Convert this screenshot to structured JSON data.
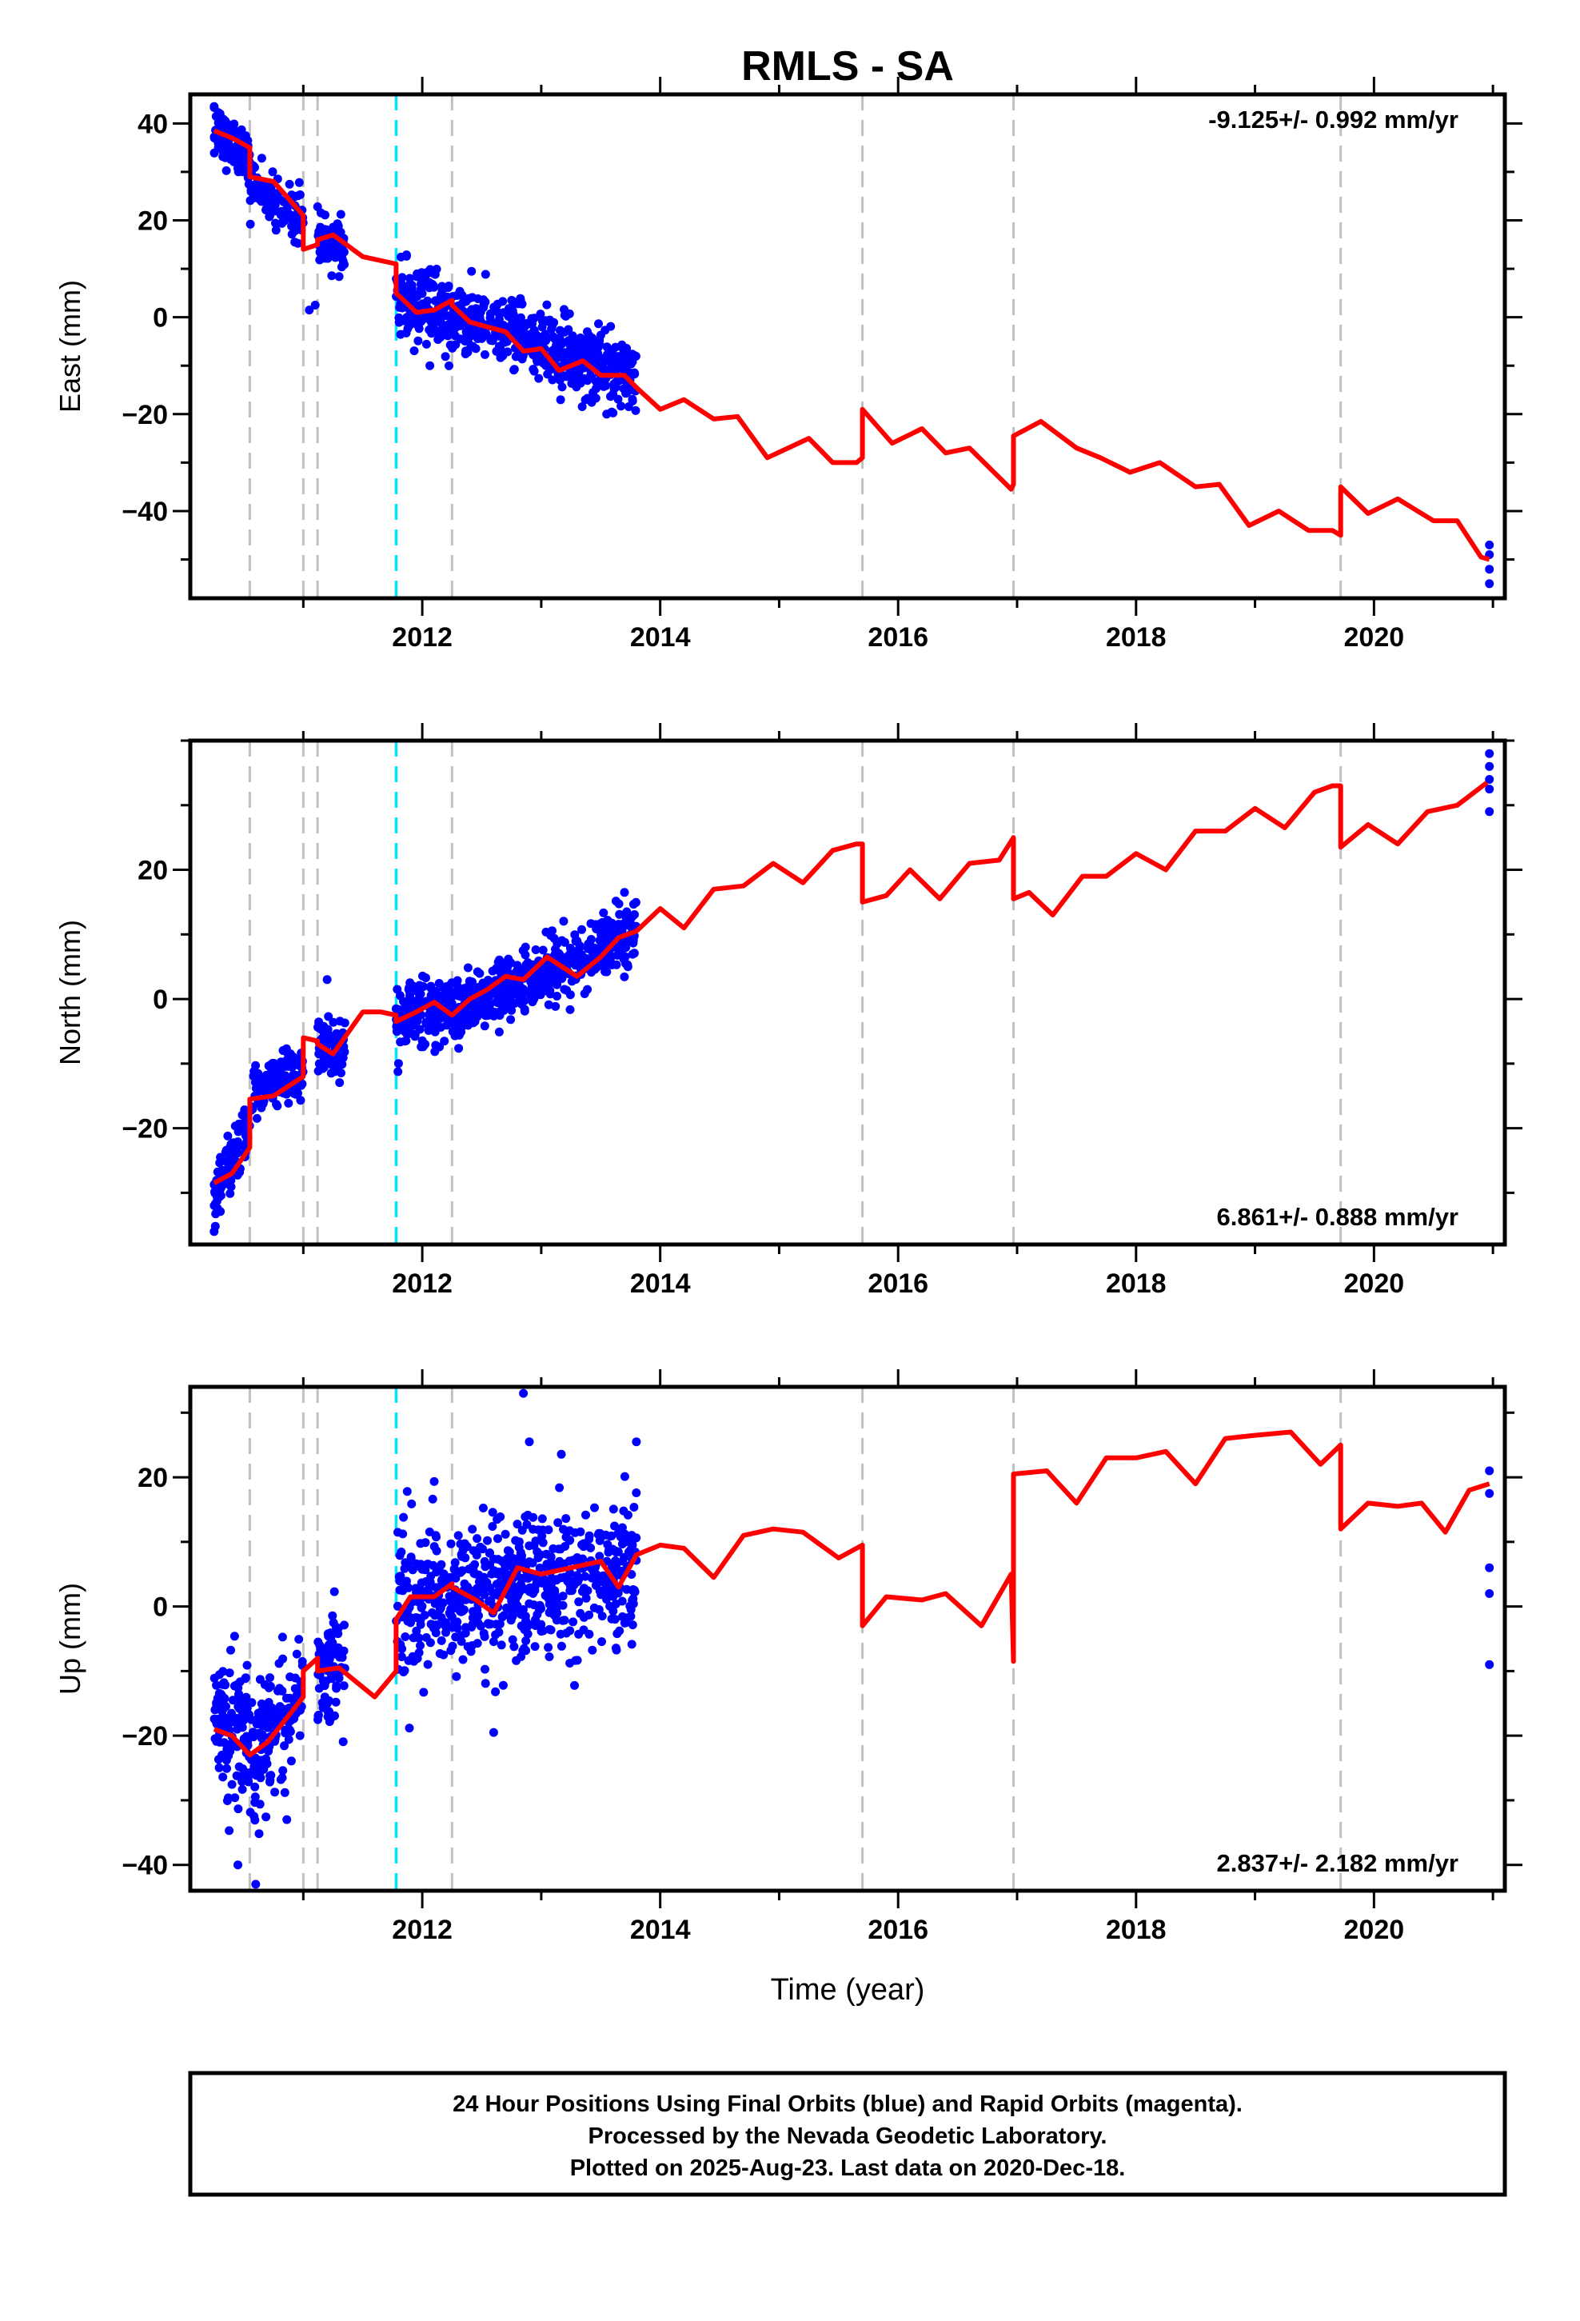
{
  "figure": {
    "title": "RMLS - SA",
    "xlabel": "Time (year)",
    "footer_lines": [
      "24 Hour Positions Using Final Orbits (blue) and Rapid Orbits (magenta).",
      "Processed by the Nevada Geodetic Laboratory.",
      "Plotted on 2025-Aug-23. Last data on 2020-Dec-18."
    ],
    "colors": {
      "data": "#0000ff",
      "model": "#ff0000",
      "event_gray": "#c0c0c0",
      "event_cyan": "#00e5ff"
    }
  },
  "chart_data": [
    {
      "type": "scatter",
      "component": "east",
      "ylabel": "East (mm)",
      "rate_label": "-9.125+/- 0.992 mm/yr",
      "rate_position": "top-right",
      "xlim": [
        2010.05,
        2021.1
      ],
      "ylim": [
        -58,
        46
      ],
      "xticks": [
        2012,
        2014,
        2016,
        2018,
        2020
      ],
      "yticks": [
        -40,
        -20,
        0,
        20,
        40
      ],
      "gray_events": [
        2010.55,
        2011.0,
        2011.12,
        2012.25,
        2015.7,
        2016.97,
        2019.72
      ],
      "cyan_events": [
        2011.78
      ],
      "model": [
        [
          2010.25,
          38.5
        ],
        [
          2010.4,
          37
        ],
        [
          2010.55,
          35
        ],
        [
          2010.55,
          29
        ],
        [
          2010.75,
          28
        ],
        [
          2011.0,
          21
        ],
        [
          2011.0,
          14
        ],
        [
          2011.12,
          15
        ],
        [
          2011.12,
          16
        ],
        [
          2011.25,
          17
        ],
        [
          2011.5,
          12.5
        ],
        [
          2011.78,
          11
        ],
        [
          2011.78,
          5
        ],
        [
          2011.95,
          1
        ],
        [
          2012.1,
          1.5
        ],
        [
          2012.25,
          3.5
        ],
        [
          2012.25,
          2.5
        ],
        [
          2012.4,
          -1
        ],
        [
          2012.55,
          -2
        ],
        [
          2012.7,
          -3
        ],
        [
          2012.85,
          -7
        ],
        [
          2013.0,
          -6.5
        ],
        [
          2013.15,
          -11
        ],
        [
          2013.35,
          -9
        ],
        [
          2013.5,
          -12
        ],
        [
          2013.7,
          -12
        ],
        [
          2013.8,
          -14.5
        ],
        [
          2014.0,
          -19
        ],
        [
          2014.2,
          -17
        ],
        [
          2014.45,
          -21
        ],
        [
          2014.65,
          -20.5
        ],
        [
          2014.9,
          -29
        ],
        [
          2015.25,
          -25
        ],
        [
          2015.45,
          -30
        ],
        [
          2015.65,
          -30
        ],
        [
          2015.7,
          -29
        ],
        [
          2015.7,
          -19
        ],
        [
          2015.95,
          -26
        ],
        [
          2016.2,
          -23
        ],
        [
          2016.4,
          -28
        ],
        [
          2016.6,
          -27
        ],
        [
          2016.95,
          -35.5
        ],
        [
          2016.97,
          -34.5
        ],
        [
          2016.97,
          -24.5
        ],
        [
          2017.2,
          -21.5
        ],
        [
          2017.5,
          -27
        ],
        [
          2017.7,
          -29
        ],
        [
          2017.95,
          -32
        ],
        [
          2018.2,
          -30
        ],
        [
          2018.5,
          -35
        ],
        [
          2018.7,
          -34.5
        ],
        [
          2018.95,
          -43
        ],
        [
          2019.2,
          -40
        ],
        [
          2019.45,
          -44
        ],
        [
          2019.65,
          -44
        ],
        [
          2019.72,
          -45
        ],
        [
          2019.72,
          -35
        ],
        [
          2019.95,
          -40.5
        ],
        [
          2020.2,
          -37.5
        ],
        [
          2020.5,
          -42
        ],
        [
          2020.7,
          -42
        ],
        [
          2020.9,
          -49.5
        ],
        [
          2020.97,
          -50
        ]
      ],
      "data_segments": [
        {
          "x0": 2010.25,
          "x1": 2010.55,
          "y0": 38,
          "y1": 33,
          "scatter": 2.5,
          "count": 120
        },
        {
          "x0": 2010.55,
          "x1": 2011.0,
          "y0": 28,
          "y1": 20,
          "scatter": 2.5,
          "count": 120
        },
        {
          "x0": 2011.12,
          "x1": 2011.35,
          "y0": 16,
          "y1": 14,
          "scatter": 2.5,
          "count": 80
        },
        {
          "x0": 2011.78,
          "x1": 2012.25,
          "y0": 4,
          "y1": 0,
          "scatter": 4.0,
          "count": 160
        },
        {
          "x0": 2012.25,
          "x1": 2013.8,
          "y0": 0,
          "y1": -12,
          "scatter": 3.5,
          "count": 520
        }
      ],
      "data_extra": [
        [
          2010.25,
          43.5
        ],
        [
          2010.3,
          42
        ],
        [
          2011.05,
          1.5
        ],
        [
          2011.1,
          2.5
        ],
        [
          2013.55,
          -20
        ],
        [
          2020.97,
          -47
        ],
        [
          2020.97,
          -49
        ],
        [
          2020.97,
          -52
        ],
        [
          2020.97,
          -55
        ]
      ]
    },
    {
      "type": "scatter",
      "component": "north",
      "ylabel": "North (mm)",
      "rate_label": "6.861+/- 0.888 mm/yr",
      "rate_position": "bottom-right",
      "xlim": [
        2010.05,
        2021.1
      ],
      "ylim": [
        -38,
        40
      ],
      "xticks": [
        2012,
        2014,
        2016,
        2018,
        2020
      ],
      "yticks": [
        -20,
        0,
        20
      ],
      "gray_events": [
        2010.55,
        2011.0,
        2011.12,
        2012.25,
        2015.7,
        2016.97,
        2019.72
      ],
      "cyan_events": [
        2011.78
      ],
      "model": [
        [
          2010.25,
          -28.5
        ],
        [
          2010.4,
          -27
        ],
        [
          2010.55,
          -23
        ],
        [
          2010.55,
          -15.5
        ],
        [
          2010.75,
          -15
        ],
        [
          2011.0,
          -12
        ],
        [
          2011.0,
          -6
        ],
        [
          2011.12,
          -6.5
        ],
        [
          2011.12,
          -7
        ],
        [
          2011.25,
          -8.5
        ],
        [
          2011.5,
          -2
        ],
        [
          2011.65,
          -2
        ],
        [
          2011.78,
          -2.5
        ],
        [
          2011.78,
          -3.5
        ],
        [
          2011.95,
          -2
        ],
        [
          2012.1,
          -0.5
        ],
        [
          2012.25,
          -2.5
        ],
        [
          2012.4,
          0
        ],
        [
          2012.55,
          1.5
        ],
        [
          2012.7,
          3.5
        ],
        [
          2012.85,
          3
        ],
        [
          2013.05,
          6.5
        ],
        [
          2013.3,
          3.5
        ],
        [
          2013.5,
          6.5
        ],
        [
          2013.65,
          9.5
        ],
        [
          2013.8,
          10.5
        ],
        [
          2014.0,
          14
        ],
        [
          2014.2,
          11
        ],
        [
          2014.45,
          17
        ],
        [
          2014.7,
          17.5
        ],
        [
          2014.95,
          21
        ],
        [
          2015.2,
          18
        ],
        [
          2015.45,
          23
        ],
        [
          2015.65,
          24
        ],
        [
          2015.7,
          24
        ],
        [
          2015.7,
          15
        ],
        [
          2015.9,
          16
        ],
        [
          2016.1,
          20
        ],
        [
          2016.35,
          15.5
        ],
        [
          2016.6,
          21
        ],
        [
          2016.85,
          21.5
        ],
        [
          2016.97,
          25
        ],
        [
          2016.97,
          15.5
        ],
        [
          2017.1,
          16.5
        ],
        [
          2017.3,
          13
        ],
        [
          2017.55,
          19
        ],
        [
          2017.75,
          19
        ],
        [
          2018.0,
          22.5
        ],
        [
          2018.25,
          20
        ],
        [
          2018.5,
          26
        ],
        [
          2018.75,
          26
        ],
        [
          2019.0,
          29.5
        ],
        [
          2019.25,
          26.5
        ],
        [
          2019.5,
          32
        ],
        [
          2019.65,
          33
        ],
        [
          2019.72,
          33
        ],
        [
          2019.72,
          23.5
        ],
        [
          2019.95,
          27
        ],
        [
          2020.2,
          24
        ],
        [
          2020.45,
          29
        ],
        [
          2020.7,
          30
        ],
        [
          2020.95,
          33.5
        ]
      ],
      "data_segments": [
        {
          "x0": 2010.25,
          "x1": 2010.55,
          "y0": -31,
          "y1": -20,
          "scatter": 2.5,
          "count": 110
        },
        {
          "x0": 2010.55,
          "x1": 2011.0,
          "y0": -15,
          "y1": -11,
          "scatter": 2.0,
          "count": 120
        },
        {
          "x0": 2011.12,
          "x1": 2011.35,
          "y0": -6.5,
          "y1": -8,
          "scatter": 2.0,
          "count": 80
        },
        {
          "x0": 2011.78,
          "x1": 2012.25,
          "y0": -3,
          "y1": -1,
          "scatter": 2.5,
          "count": 160
        },
        {
          "x0": 2012.25,
          "x1": 2013.8,
          "y0": -2,
          "y1": 10,
          "scatter": 2.5,
          "count": 520
        }
      ],
      "data_extra": [
        [
          2010.25,
          -36
        ],
        [
          2011.2,
          3
        ],
        [
          2013.7,
          16.5
        ],
        [
          2020.97,
          29
        ],
        [
          2020.97,
          32.5
        ],
        [
          2020.97,
          34
        ],
        [
          2020.97,
          36
        ],
        [
          2020.97,
          38
        ]
      ]
    },
    {
      "type": "scatter",
      "component": "up",
      "ylabel": "Up (mm)",
      "rate_label": "2.837+/- 2.182 mm/yr",
      "rate_position": "bottom-right",
      "xlim": [
        2010.05,
        2021.1
      ],
      "ylim": [
        -44,
        34
      ],
      "xticks": [
        2012,
        2014,
        2016,
        2018,
        2020
      ],
      "yticks": [
        -40,
        -20,
        0,
        20
      ],
      "gray_events": [
        2010.55,
        2011.0,
        2011.12,
        2012.25,
        2015.7,
        2016.97,
        2019.72
      ],
      "cyan_events": [
        2011.78
      ],
      "model": [
        [
          2010.25,
          -19
        ],
        [
          2010.4,
          -20
        ],
        [
          2010.55,
          -23
        ],
        [
          2010.7,
          -21
        ],
        [
          2011.0,
          -14
        ],
        [
          2011.0,
          -10
        ],
        [
          2011.12,
          -8
        ],
        [
          2011.12,
          -10
        ],
        [
          2011.3,
          -9.5
        ],
        [
          2011.6,
          -14
        ],
        [
          2011.78,
          -10
        ],
        [
          2011.78,
          -2
        ],
        [
          2011.9,
          1.5
        ],
        [
          2012.1,
          1.5
        ],
        [
          2012.25,
          3.5
        ],
        [
          2012.25,
          3
        ],
        [
          2012.45,
          1
        ],
        [
          2012.6,
          -1
        ],
        [
          2012.8,
          6
        ],
        [
          2013.0,
          5
        ],
        [
          2013.25,
          6
        ],
        [
          2013.5,
          7
        ],
        [
          2013.65,
          3
        ],
        [
          2013.8,
          8
        ],
        [
          2014.0,
          9.5
        ],
        [
          2014.2,
          9
        ],
        [
          2014.45,
          4.5
        ],
        [
          2014.7,
          11
        ],
        [
          2014.95,
          12
        ],
        [
          2015.2,
          11.5
        ],
        [
          2015.5,
          7.5
        ],
        [
          2015.7,
          9.5
        ],
        [
          2015.7,
          -3
        ],
        [
          2015.9,
          1.5
        ],
        [
          2016.2,
          1
        ],
        [
          2016.4,
          2
        ],
        [
          2016.7,
          -3
        ],
        [
          2016.95,
          5
        ],
        [
          2016.97,
          -8.5
        ],
        [
          2016.97,
          20.5
        ],
        [
          2017.25,
          21
        ],
        [
          2017.5,
          16
        ],
        [
          2017.75,
          23
        ],
        [
          2018.0,
          23
        ],
        [
          2018.25,
          24
        ],
        [
          2018.5,
          19
        ],
        [
          2018.75,
          26
        ],
        [
          2019.0,
          26.5
        ],
        [
          2019.3,
          27
        ],
        [
          2019.55,
          22
        ],
        [
          2019.72,
          25
        ],
        [
          2019.72,
          12
        ],
        [
          2019.95,
          16
        ],
        [
          2020.2,
          15.5
        ],
        [
          2020.4,
          16
        ],
        [
          2020.6,
          11.5
        ],
        [
          2020.8,
          18
        ],
        [
          2020.97,
          19
        ]
      ],
      "data_segments": [
        {
          "x0": 2010.25,
          "x1": 2010.55,
          "y0": -18,
          "y1": -22,
          "scatter": 5.0,
          "count": 130
        },
        {
          "x0": 2010.55,
          "x1": 2011.0,
          "y0": -24,
          "y1": -13,
          "scatter": 5.0,
          "count": 140
        },
        {
          "x0": 2011.12,
          "x1": 2011.35,
          "y0": -9,
          "y1": -9,
          "scatter": 4.5,
          "count": 80
        },
        {
          "x0": 2011.78,
          "x1": 2012.25,
          "y0": 1,
          "y1": 3,
          "scatter": 6.0,
          "count": 160
        },
        {
          "x0": 2012.25,
          "x1": 2013.8,
          "y0": 1,
          "y1": 6,
          "scatter": 5.5,
          "count": 520
        }
      ],
      "data_extra": [
        [
          2010.45,
          -40
        ],
        [
          2010.6,
          -43
        ],
        [
          2012.85,
          33
        ],
        [
          2012.9,
          25.5
        ],
        [
          2013.8,
          25.5
        ],
        [
          2012.6,
          -19.5
        ],
        [
          2020.97,
          21
        ],
        [
          2020.97,
          17.5
        ],
        [
          2020.97,
          6
        ],
        [
          2020.97,
          2
        ],
        [
          2020.97,
          -9
        ]
      ]
    }
  ]
}
